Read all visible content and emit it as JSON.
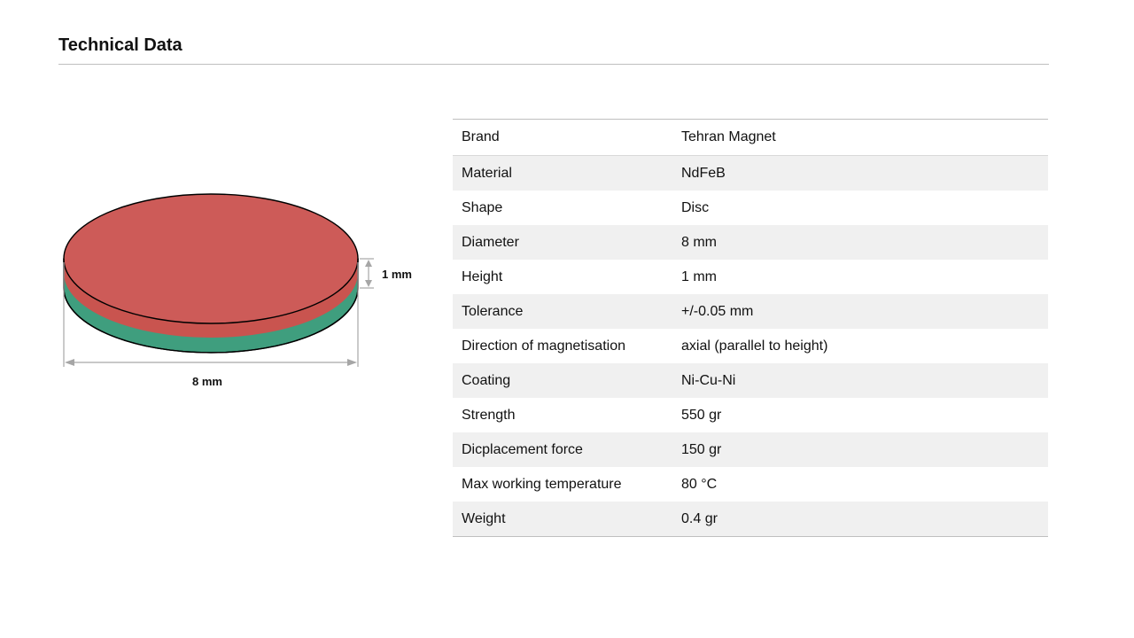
{
  "header": {
    "title": "Technical Data"
  },
  "figure": {
    "height_label": "1 mm",
    "diameter_label": "8 mm",
    "colors": {
      "top_face": "#cd5b58",
      "side_band_red": "#c9544f",
      "side_band_green": "#3f9e7e",
      "dimension_lines": "#a6a6a6"
    }
  },
  "specs": {
    "rows": [
      {
        "label": "Brand",
        "value": "Tehran Magnet"
      },
      {
        "label": "Material",
        "value": "NdFeB"
      },
      {
        "label": "Shape",
        "value": "Disc"
      },
      {
        "label": "Diameter",
        "value": "8 mm"
      },
      {
        "label": "Height",
        "value": "1 mm"
      },
      {
        "label": "Tolerance",
        "value": "+/-0.05 mm"
      },
      {
        "label": "Direction of magnetisation",
        "value": "axial (parallel to height)"
      },
      {
        "label": "Coating",
        "value": "Ni-Cu-Ni"
      },
      {
        "label": "Strength",
        "value": "550 gr"
      },
      {
        "label": "Dicplacement force",
        "value": "150 gr"
      },
      {
        "label": "Max working temperature",
        "value": "80 °C"
      },
      {
        "label": "Weight",
        "value": "0.4 gr"
      }
    ]
  }
}
